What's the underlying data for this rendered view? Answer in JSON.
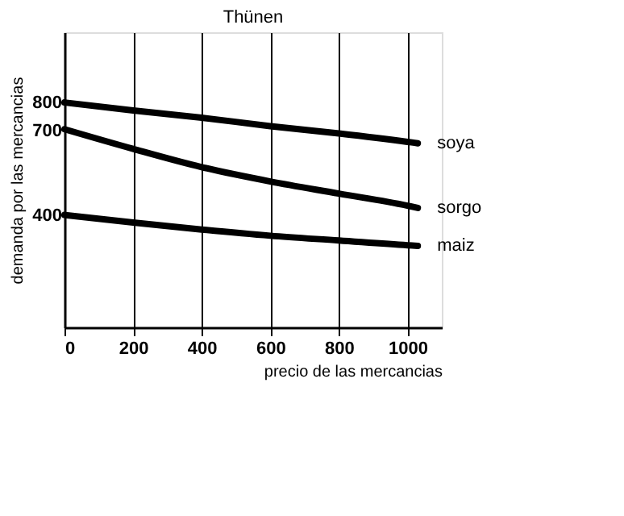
{
  "chart_data": {
    "type": "line",
    "title": "Thünen",
    "xlabel": "precio de las mercancias",
    "ylabel": "demanda por las mercancias",
    "x": [
      0,
      200,
      400,
      600,
      800,
      1000,
      1030
    ],
    "series": [
      {
        "name": "soya",
        "color": "#000000",
        "values": [
          800,
          772,
          746,
          716,
          690,
          660,
          655
        ]
      },
      {
        "name": "sorgo",
        "color": "#000000",
        "values": [
          705,
          635,
          570,
          519,
          476,
          433,
          425
        ]
      },
      {
        "name": "maiz",
        "color": "#000000",
        "values": [
          400,
          373,
          348,
          326,
          309,
          292,
          290
        ]
      }
    ],
    "xlim": [
      0,
      1100
    ],
    "xticks": [
      0,
      200,
      400,
      600,
      800,
      1000
    ],
    "ylim": [
      0,
      1050
    ],
    "yticks": [
      400,
      700,
      800
    ],
    "grid": "x",
    "legend": false,
    "marker": "none",
    "line_style": "solid"
  }
}
